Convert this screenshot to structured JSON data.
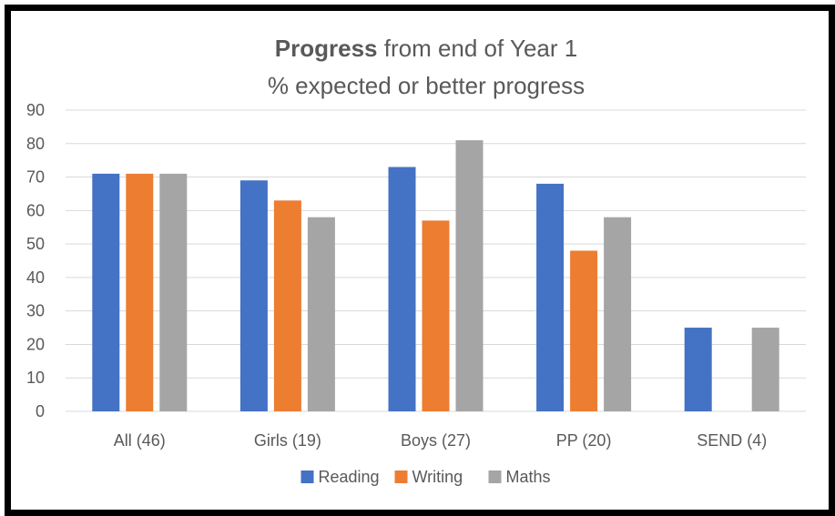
{
  "chart_data": {
    "type": "bar",
    "title_bold": "Progress",
    "title_rest": "from end of Year 1",
    "subtitle": "% expected or better progress",
    "categories": [
      "All  (46)",
      "Girls (19)",
      "Boys (27)",
      "PP (20)",
      "SEND (4)"
    ],
    "series": [
      {
        "name": "Reading",
        "color": "#4472c4",
        "values": [
          71,
          69,
          73,
          68,
          25
        ]
      },
      {
        "name": "Writing",
        "color": "#ed7d31",
        "values": [
          71,
          63,
          57,
          48,
          0
        ]
      },
      {
        "name": "Maths",
        "color": "#a5a5a5",
        "values": [
          71,
          58,
          81,
          58,
          25
        ]
      }
    ],
    "ylim": [
      0,
      90
    ],
    "yticks": [
      0,
      10,
      20,
      30,
      40,
      50,
      60,
      70,
      80,
      90
    ],
    "grid": true,
    "legend": "bottom"
  }
}
